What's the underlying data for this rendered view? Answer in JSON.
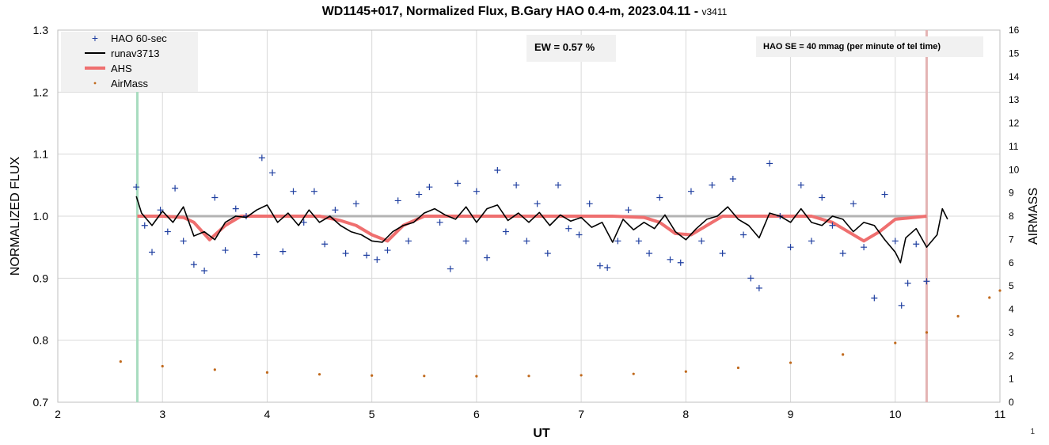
{
  "title": {
    "main": "WD1145+017, Normalized Flux, B.Gary HAO 0.4-m, 2023.04.11 - ",
    "version": "v3411"
  },
  "annotations": {
    "ew": "EW = 0.57 %",
    "se": "HAO SE =  40 mmag (per minute of tel time)"
  },
  "page_number": "1",
  "colors": {
    "hao": "#1f3fa0",
    "runav": "#000000",
    "ahs": "#ef6f6f",
    "airmass": "#c0691c",
    "baseline": "#b3b3b3",
    "start_marker": "#a8dcc0",
    "end_marker": "#e4b4b4",
    "grid": "#d9d9d9"
  },
  "chart_data": {
    "type": "scatter",
    "title": "WD1145+017, Normalized Flux, B.Gary HAO 0.4-m, 2023.04.11 - v3411",
    "xlabel": "UT",
    "ylabel": "NORMALIZED FLUX",
    "y2label": "AIRMASS",
    "xlim": [
      2,
      11
    ],
    "ylim": [
      0.7,
      1.3
    ],
    "y2lim": [
      0,
      16
    ],
    "xticks": [
      "2",
      "3",
      "4",
      "5",
      "6",
      "7",
      "8",
      "9",
      "10",
      "11"
    ],
    "yticks": [
      "0.7",
      "0.8",
      "0.9",
      "1.0",
      "1.1",
      "1.2",
      "1.3"
    ],
    "y2ticks": [
      "0",
      "1",
      "2",
      "3",
      "4",
      "5",
      "6",
      "7",
      "8",
      "9",
      "10",
      "11",
      "12",
      "13",
      "14",
      "15",
      "16"
    ],
    "grid": true,
    "legend_position": "top-left",
    "legend": [
      "HAO 60-sec",
      "runav3713",
      "AHS",
      "AirMass"
    ],
    "baseline": 1.0,
    "markers": {
      "start": 2.76,
      "end": 10.3
    },
    "series": [
      {
        "name": "HAO 60-sec",
        "kind": "scatter",
        "x": [
          2.75,
          2.83,
          2.9,
          2.98,
          3.05,
          3.12,
          3.2,
          3.3,
          3.4,
          3.5,
          3.6,
          3.7,
          3.8,
          3.9,
          3.95,
          4.05,
          4.15,
          4.25,
          4.35,
          4.45,
          4.55,
          4.65,
          4.75,
          4.85,
          4.95,
          5.05,
          5.15,
          5.25,
          5.35,
          5.45,
          5.55,
          5.65,
          5.75,
          5.82,
          5.9,
          6.0,
          6.1,
          6.2,
          6.28,
          6.38,
          6.48,
          6.58,
          6.68,
          6.78,
          6.88,
          6.98,
          7.08,
          7.18,
          7.25,
          7.35,
          7.45,
          7.55,
          7.65,
          7.75,
          7.85,
          7.95,
          8.05,
          8.15,
          8.25,
          8.35,
          8.45,
          8.55,
          8.62,
          8.7,
          8.8,
          8.9,
          9.0,
          9.1,
          9.2,
          9.3,
          9.4,
          9.5,
          9.6,
          9.7,
          9.8,
          9.9,
          10.0,
          10.06,
          10.12,
          10.2,
          10.3
        ],
        "y": [
          1.047,
          0.985,
          0.942,
          1.01,
          0.975,
          1.045,
          0.96,
          0.922,
          0.912,
          1.03,
          0.945,
          1.012,
          1.0,
          0.938,
          1.094,
          1.07,
          0.943,
          1.04,
          0.99,
          1.04,
          0.955,
          1.01,
          0.94,
          1.02,
          0.937,
          0.93,
          0.945,
          1.025,
          0.96,
          1.035,
          1.047,
          0.99,
          0.915,
          1.053,
          0.96,
          1.04,
          0.933,
          1.074,
          0.975,
          1.05,
          0.96,
          1.02,
          0.94,
          1.05,
          0.98,
          0.97,
          1.02,
          0.92,
          0.917,
          0.96,
          1.01,
          0.96,
          0.94,
          1.03,
          0.93,
          0.925,
          1.04,
          0.96,
          1.05,
          0.94,
          1.06,
          0.97,
          0.9,
          0.884,
          1.085,
          1.0,
          0.95,
          1.05,
          0.96,
          1.03,
          0.985,
          0.94,
          1.02,
          0.95,
          0.868,
          1.035,
          0.96,
          0.856,
          0.892,
          0.955,
          0.895
        ]
      },
      {
        "name": "runav3713",
        "kind": "line",
        "x": [
          2.75,
          2.8,
          2.9,
          3.0,
          3.1,
          3.2,
          3.3,
          3.4,
          3.5,
          3.6,
          3.7,
          3.8,
          3.9,
          4.0,
          4.1,
          4.2,
          4.3,
          4.4,
          4.5,
          4.6,
          4.7,
          4.8,
          4.9,
          5.0,
          5.1,
          5.2,
          5.3,
          5.4,
          5.5,
          5.6,
          5.7,
          5.8,
          5.9,
          6.0,
          6.1,
          6.2,
          6.3,
          6.4,
          6.5,
          6.6,
          6.7,
          6.8,
          6.9,
          7.0,
          7.1,
          7.2,
          7.3,
          7.4,
          7.5,
          7.6,
          7.7,
          7.8,
          7.9,
          8.0,
          8.1,
          8.2,
          8.3,
          8.4,
          8.5,
          8.6,
          8.7,
          8.8,
          8.9,
          9.0,
          9.1,
          9.2,
          9.3,
          9.4,
          9.5,
          9.6,
          9.7,
          9.8,
          9.9,
          10.0,
          10.05,
          10.1,
          10.2,
          10.3,
          10.4,
          10.45,
          10.5
        ],
        "y": [
          1.032,
          1.005,
          0.985,
          1.008,
          0.99,
          1.015,
          0.968,
          0.975,
          0.962,
          0.99,
          1.0,
          0.998,
          1.01,
          1.018,
          0.99,
          1.005,
          0.985,
          1.01,
          0.99,
          1.0,
          0.985,
          0.975,
          0.97,
          0.96,
          0.958,
          0.975,
          0.985,
          0.99,
          1.005,
          1.012,
          1.002,
          0.995,
          1.015,
          0.99,
          1.012,
          1.018,
          0.993,
          1.005,
          0.99,
          1.006,
          0.985,
          1.002,
          0.992,
          0.998,
          0.982,
          0.99,
          0.958,
          0.995,
          0.978,
          0.99,
          0.98,
          1.002,
          0.975,
          0.962,
          0.98,
          0.995,
          1.0,
          1.015,
          0.995,
          0.985,
          0.965,
          1.005,
          1.0,
          0.99,
          1.012,
          0.99,
          0.985,
          1.0,
          0.995,
          0.975,
          0.99,
          0.985,
          0.962,
          0.942,
          0.925,
          0.965,
          0.98,
          0.95,
          0.97,
          1.012,
          0.995
        ]
      },
      {
        "name": "AHS",
        "kind": "line",
        "x": [
          2.76,
          3.0,
          3.2,
          3.3,
          3.45,
          3.6,
          3.75,
          4.5,
          4.7,
          4.85,
          5.0,
          5.15,
          5.3,
          5.5,
          7.3,
          7.6,
          7.75,
          7.9,
          8.05,
          8.2,
          8.35,
          9.2,
          9.4,
          9.55,
          9.7,
          9.85,
          10.0,
          10.3
        ],
        "y": [
          1.0,
          1.0,
          0.998,
          0.99,
          0.962,
          0.985,
          1.0,
          1.0,
          0.993,
          0.985,
          0.97,
          0.96,
          0.985,
          1.0,
          1.0,
          0.998,
          0.99,
          0.972,
          0.97,
          0.985,
          1.0,
          1.0,
          0.99,
          0.975,
          0.96,
          0.975,
          0.995,
          1.0
        ]
      },
      {
        "name": "AirMass",
        "kind": "scatter",
        "x": [
          2.6,
          3.0,
          3.5,
          4.0,
          4.5,
          5.0,
          5.5,
          6.0,
          6.5,
          7.0,
          7.5,
          8.0,
          8.5,
          9.0,
          9.5,
          10.0,
          10.3,
          10.6,
          10.9,
          11.0
        ],
        "y": [
          1.75,
          1.55,
          1.4,
          1.28,
          1.2,
          1.15,
          1.13,
          1.12,
          1.13,
          1.16,
          1.22,
          1.32,
          1.48,
          1.7,
          2.05,
          2.55,
          3.0,
          3.7,
          4.5,
          4.8
        ]
      }
    ]
  }
}
